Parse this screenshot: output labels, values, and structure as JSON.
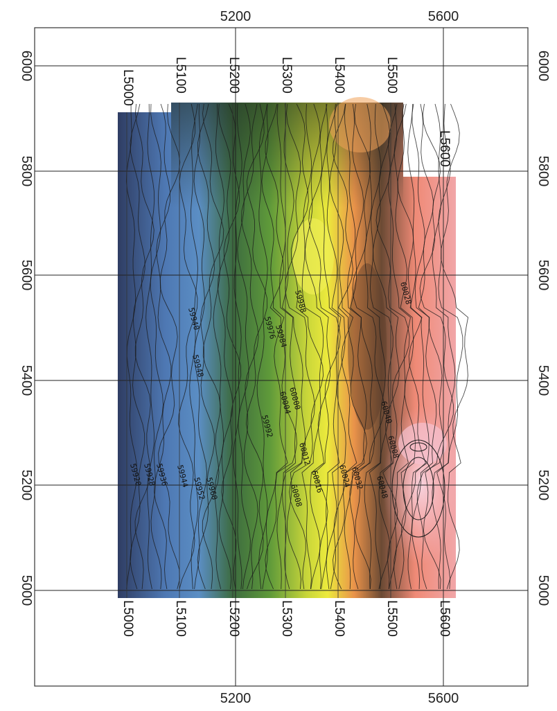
{
  "axes": {
    "easting_top_ticks": [
      "5200",
      "5600"
    ],
    "easting_bottom_ticks": [
      "5200",
      "5600"
    ],
    "northing_left_ticks": [
      "6000",
      "5800",
      "5600",
      "5400",
      "5200",
      "5000"
    ],
    "northing_right_ticks": [
      "6000",
      "5800",
      "5600",
      "5400",
      "5200",
      "5000"
    ]
  },
  "survey_lines": {
    "top_labels": [
      "L5000",
      "L5100",
      "L5200",
      "L5300",
      "L5400",
      "L5500",
      "L5600"
    ],
    "bottom_labels": [
      "L5000",
      "L5100",
      "L5200",
      "L5300",
      "L5400",
      "L5500",
      "L5600"
    ]
  },
  "contour_labels": [
    "59920",
    "59928",
    "59936",
    "59944",
    "59940",
    "59948",
    "59952",
    "59960",
    "59976",
    "59984",
    "59988",
    "59992",
    "60000",
    "60004",
    "60008",
    "60008",
    "60012",
    "60016",
    "60024",
    "60032",
    "60040",
    "60048",
    "60028"
  ],
  "colors": {
    "low": "#2f3d63",
    "blue": "#5b8ec4",
    "green": "#4b8a3a",
    "yellow": "#ecea3c",
    "orange": "#e9924a",
    "brown": "#6b4a34",
    "salmon": "#ef8a76",
    "pink": "#f5b8c8"
  }
}
